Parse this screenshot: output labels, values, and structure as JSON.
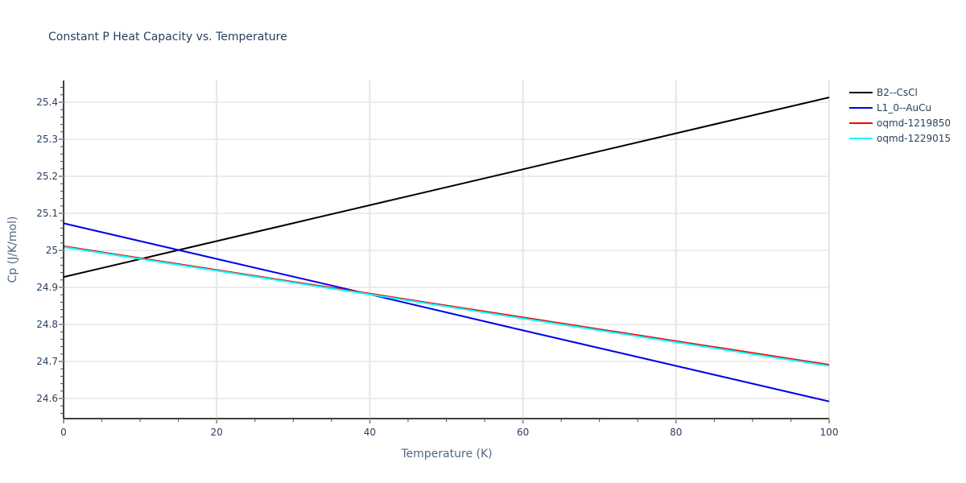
{
  "chart_data": {
    "type": "line",
    "title": "Constant P Heat Capacity vs. Temperature",
    "xlabel": "Temperature (K)",
    "ylabel": "Cp (J/K/mol)",
    "xlim": [
      0,
      100
    ],
    "ylim": [
      24.545,
      25.457
    ],
    "x_ticks": [
      0,
      20,
      40,
      60,
      80,
      100
    ],
    "y_ticks": [
      24.6,
      24.7,
      24.8,
      24.9,
      25,
      25.1,
      25.2,
      25.3,
      25.4
    ],
    "y_tick_labels": [
      "24.6",
      "24.7",
      "24.8",
      "24.9",
      "25",
      "25.1",
      "25.2",
      "25.3",
      "25.4"
    ],
    "grid": true,
    "legend_position": "right",
    "x": [
      0,
      20,
      40,
      60,
      80,
      100
    ],
    "series": [
      {
        "name": "B2--CsCl",
        "color": "#000000",
        "values": [
          24.928,
          25.025,
          25.122,
          25.219,
          25.316,
          25.413
        ]
      },
      {
        "name": "L1_0--AuCu",
        "color": "#0000ee",
        "values": [
          25.073,
          24.977,
          24.881,
          24.784,
          24.688,
          24.592
        ]
      },
      {
        "name": "oqmd-1219850",
        "color": "#ff0000",
        "values": [
          25.011,
          24.947,
          24.883,
          24.819,
          24.755,
          24.691
        ]
      },
      {
        "name": "oqmd-1229015",
        "color": "#00ffff",
        "values": [
          25.009,
          24.945,
          24.881,
          24.816,
          24.752,
          24.688
        ]
      }
    ]
  }
}
